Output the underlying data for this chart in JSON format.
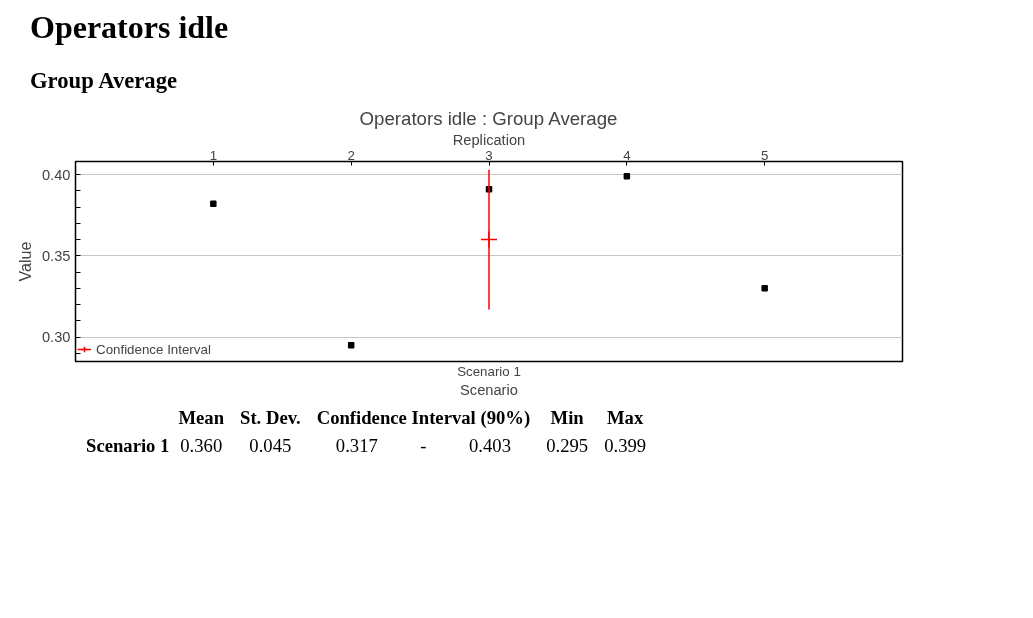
{
  "chart_data": {
    "type": "scatter",
    "title": "Operators idle : Group Average",
    "xlabel": "Replication",
    "ylabel": "Value",
    "xlim": [
      0,
      6
    ],
    "xticks": [
      1,
      2,
      3,
      4,
      5
    ],
    "ylim": [
      0.285,
      0.408
    ],
    "yticks": [
      {
        "value": 0.3,
        "label": "0.30"
      },
      {
        "value": 0.35,
        "label": "0.35"
      },
      {
        "value": 0.4,
        "label": "0.40"
      }
    ],
    "grid": "y",
    "legend": "bottom left",
    "series": [
      {
        "x": [
          1,
          2,
          3,
          4,
          5
        ],
        "values": [
          0.382,
          0.295,
          0.391,
          0.399,
          0.33
        ],
        "color": "#000000",
        "marker": "square"
      },
      {
        "name": "Confidence Interval",
        "x": [
          3
        ],
        "values": [
          0.36
        ],
        "errors": [
          [
            0.317,
            0.403
          ]
        ],
        "color": "#ff0000",
        "marker": "cross"
      }
    ],
    "annotations": [
      "Operators idle",
      "Group Average",
      "Mean",
      "St. Dev.",
      "Confidence Interval (90%)",
      "Min",
      "Max",
      "Scenario 1",
      "0.360",
      "0.045",
      "0.317",
      "-",
      "0.403",
      "0.295",
      "0.399",
      "Scenario 1",
      "Scenario"
    ]
  }
}
